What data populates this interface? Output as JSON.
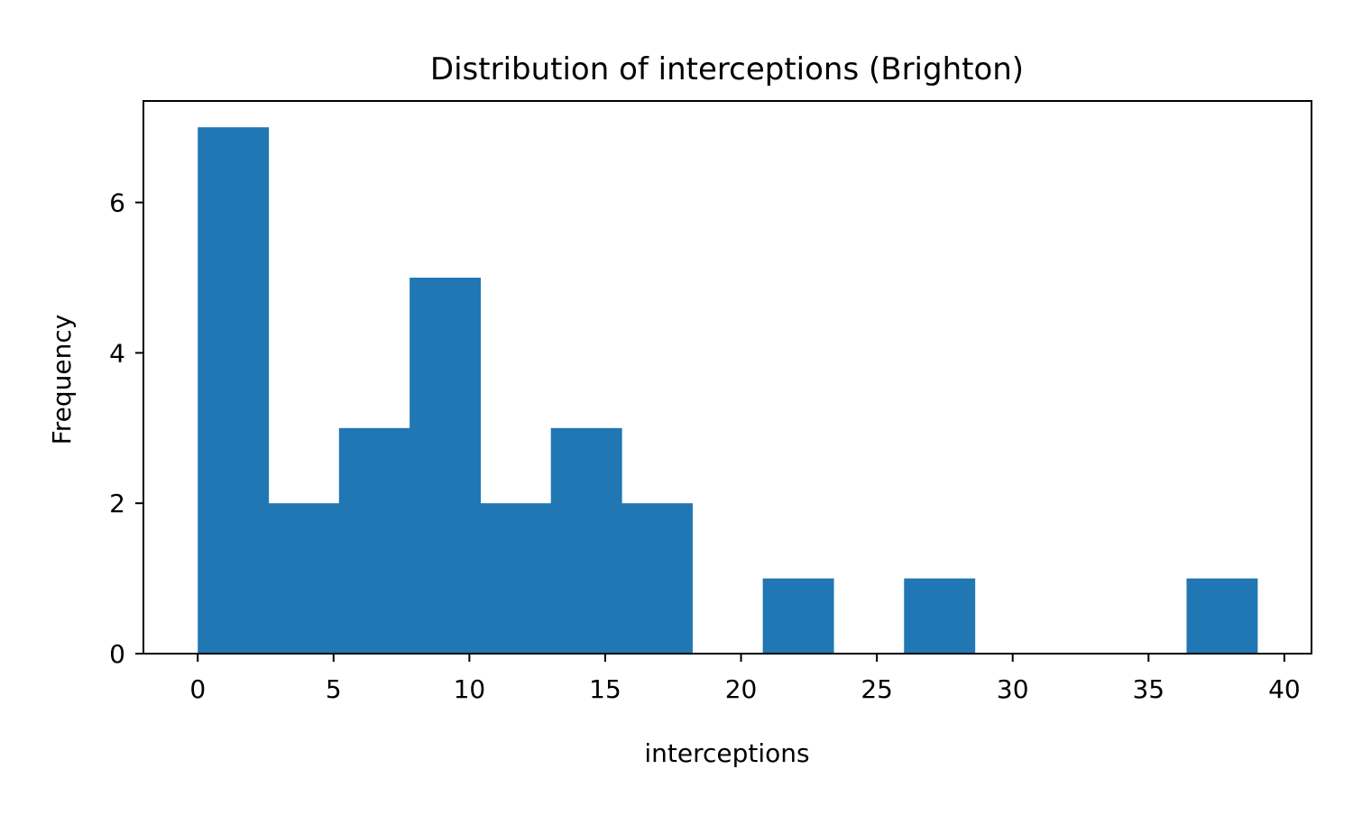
{
  "chart_data": {
    "type": "bar",
    "title": "Distribution of interceptions (Brighton)",
    "xlabel": "interceptions",
    "ylabel": "Frequency",
    "bin_edges": [
      0,
      2.6,
      5.2,
      7.8,
      10.4,
      13.0,
      15.6,
      18.2,
      20.8,
      23.4,
      26.0,
      28.6,
      31.2,
      33.8,
      36.4,
      39.0
    ],
    "values": [
      7,
      2,
      3,
      5,
      2,
      3,
      2,
      0,
      1,
      0,
      1,
      0,
      0,
      0,
      1
    ],
    "xlim": [
      -2,
      41
    ],
    "ylim": [
      0,
      7.35
    ],
    "xticks": [
      0,
      5,
      10,
      15,
      20,
      25,
      30,
      35,
      40
    ],
    "xtick_labels": [
      "0",
      "5",
      "10",
      "15",
      "20",
      "25",
      "30",
      "35",
      "40"
    ],
    "yticks": [
      0,
      2,
      4,
      6
    ],
    "ytick_labels": [
      "0",
      "2",
      "4",
      "6"
    ],
    "grid": false,
    "legend": "none",
    "colors": {
      "bar": "#2077b4",
      "axis": "#000000"
    }
  }
}
